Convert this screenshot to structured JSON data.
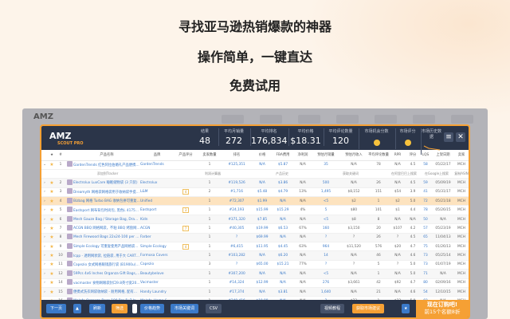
{
  "headlines": [
    "寻找亚马逊热销爆款的神器",
    "操作简单，一键直达",
    "免费试用"
  ],
  "background_app": {
    "logo": "AMZ"
  },
  "app": {
    "logo": "AMZ",
    "logo_sub": "SCOUT PRO",
    "stats": [
      {
        "label": "结果",
        "value": "48"
      },
      {
        "label": "平均月销量",
        "value": "272"
      },
      {
        "label": "平均排名",
        "value": "176,834"
      },
      {
        "label": "平均价格",
        "value": "$18.31"
      },
      {
        "label": "平均评论数量",
        "value": "120"
      }
    ],
    "scores": [
      {
        "label": "市场机会分数"
      },
      {
        "label": "市场评分"
      },
      {
        "label": "市场历史数据"
      }
    ],
    "menu_icon": "hamburger-icon",
    "close_icon": "close-icon"
  },
  "columns": [
    "",
    "★",
    "#",
    "",
    "产品名称",
    "品牌",
    "产品评分",
    "卖家数量",
    "排名",
    "价格",
    "FBA费用",
    "净利润",
    "预估月销量",
    "预估月收入",
    "平均评论数量",
    "RPR",
    "评分",
    "LQS",
    "上架日期",
    "卖家"
  ],
  "actions": [
    "添加到Tracker",
    "利润计算器",
    "产品历史",
    "获取关键词",
    "在阿里巴巴上搜索",
    "在Google上搜索",
    "复制ASIN"
  ],
  "rows": [
    {
      "n": "1",
      "name": "GardenTrends 红色阿拉伯婚礼产品便携式烤肉架 - 45.72 厘米...",
      "brand": "GardenTrends",
      "score": "",
      "sellers": "1",
      "rank": "#125,351",
      "price": "N/A",
      "fba": "$5.87",
      "net": "N/A",
      "sales": "35",
      "rev": "N/A",
      "reviews": "78",
      "rpr": "N/A",
      "rating": "4.5",
      "lqs": "58",
      "date": "05/22/17",
      "seller": "MCH"
    },
    {
      "n": "2",
      "name": "Electrolux LuxCare 睡眠储物袋 (3 只装)",
      "brand": "Electrolux",
      "score": "",
      "sellers": "1",
      "rank": "#119,526",
      "price": "N/A",
      "fba": "$3.86",
      "net": "N/A",
      "sales": "500",
      "rev": "N/A",
      "reviews": "26",
      "rpr": "N/A",
      "rating": "4.5",
      "lqs": "59",
      "date": "05/09/19",
      "seller": "MCH"
    },
    {
      "n": "3",
      "name": "Dreamyth 网格袋网格袋用于收纳袋手提袋旅游袋",
      "brand": "L&M",
      "score": "4",
      "sellers": "2",
      "rank": "#1,716",
      "price": "$5.48",
      "fba": "$4.79",
      "net": "13%",
      "sales": "1,495",
      "rev": "$8,152",
      "reviews": "151",
      "rpr": "$54",
      "rating": "3.9",
      "lqs": "41",
      "date": "05/31/17",
      "seller": "MCH"
    },
    {
      "n": "4",
      "name": "Bizbag 网格 Turbo BAG 收纳包拼可重复使用大容量手提包",
      "brand": "Unified",
      "score": "",
      "sellers": "1",
      "rank": "#72,307",
      "price": "$1.99",
      "fba": "N/A",
      "net": "N/A",
      "sales": "<5",
      "rev": "$2",
      "reviews": "1",
      "rpr": "$2",
      "rating": "5.0",
      "lqs": "72",
      "date": "05/21/18",
      "seller": "MCH"
    },
    {
      "n": "5",
      "name": "Eastsport 网布背包时尚包, 黑色L 417570-BLK",
      "brand": "Eastsport",
      "score": "3",
      "sellers": "1",
      "rank": "#24,193",
      "price": "$15.99",
      "fba": "$15.29",
      "net": "4%",
      "sales": "5",
      "rev": "$80",
      "reviews": "101",
      "rpr": "$1",
      "rating": "4.4",
      "lqs": "78",
      "date": "05/26/15",
      "seller": "MCH"
    },
    {
      "n": "6",
      "name": "Mesh Gauze Bag / Storage Bag, Drawstring Organza Gift Ba...",
      "brand": "Kidn",
      "score": "",
      "sellers": "1",
      "rank": "#371,320",
      "price": "$7.85",
      "fba": "N/A",
      "net": "N/A",
      "sales": "<5",
      "rev": "$8",
      "reviews": "8",
      "rpr": "N/A",
      "rating": "N/A",
      "lqs": "50",
      "date": "N/A",
      "seller": "MCH"
    },
    {
      "n": "7",
      "name": "ACGN BBQ 网格网袋，不粘 BBQ 烤盘网格烧烤可重复使用...",
      "brand": "ACGN",
      "score": "7",
      "sellers": "1",
      "rank": "#40,305",
      "price": "$19.99",
      "fba": "$6.53",
      "net": "67%",
      "sales": "160",
      "rev": "$3,150",
      "reviews": "20",
      "rpr": "$107",
      "rating": "4.2",
      "lqs": "57",
      "date": "05/23/19",
      "seller": "MCH"
    },
    {
      "n": "8",
      "name": "Mesh Firewood Bags 22x24-100 per Pack",
      "brand": "Farber",
      "score": "",
      "sellers": "1",
      "rank": "?",
      "price": "$69.99",
      "fba": "N/A",
      "net": "N/A",
      "sales": "?",
      "rev": "?",
      "reviews": "26",
      "rpr": "?",
      "rating": "4.5",
      "lqs": "65",
      "date": "11/04/13",
      "seller": "MCH"
    },
    {
      "n": "9",
      "name": "Simple Ecology 可重复使用产品网格袋套装, 细绳, 可水洗...",
      "brand": "Simple Ecology",
      "score": "4",
      "sellers": "1",
      "rank": "#6,415",
      "price": "$11.95",
      "fba": "$4.45",
      "net": "63%",
      "sales": "964",
      "rev": "$11,520",
      "reviews": "576",
      "rpr": "$20",
      "rating": "4.7",
      "lqs": "75",
      "date": "01/26/13",
      "seller": "MCH"
    },
    {
      "n": "10",
      "name": "Icpp - 透明网状袋, 拉链袋, 用于大 CART 拖鞋玩具工具包",
      "brand": "Formosa Covers",
      "score": "",
      "sellers": "1",
      "rank": "#103,282",
      "price": "N/A",
      "fba": "$6.20",
      "net": "N/A",
      "sales": "14",
      "rev": "N/A",
      "reviews": "46",
      "rpr": "N/A",
      "rating": "4.6",
      "lqs": "73",
      "date": "05/25/14",
      "seller": "MCH"
    },
    {
      "n": "11",
      "name": "Capezio 女式网格眼镜旅行袋 (B1900u), 均码, 黑色",
      "brand": "Capezio",
      "score": "",
      "sellers": "3",
      "rank": "?",
      "price": "$65.00",
      "fba": "$15.21",
      "net": "77%",
      "sales": "?",
      "rev": "?",
      "reviews": "5",
      "rpr": "?",
      "rating": "5.0",
      "lqs": "73",
      "date": "01/07/19",
      "seller": "MCH"
    },
    {
      "n": "12",
      "name": "59Pcs 4x6 Inches Organza Gift Bags,Beautybelove Drawstrin...",
      "brand": "Beautybelove",
      "score": "",
      "sellers": "1",
      "rank": "#307,200",
      "price": "N/A",
      "fba": "N/A",
      "net": "N/A",
      "sales": "<5",
      "rev": "N/A",
      "reviews": "1",
      "rpr": "N/A",
      "rating": "5.0",
      "lqs": "71",
      "date": "N/A",
      "seller": "MCH"
    },
    {
      "n": "14",
      "name": "vacmaster 食物网眼袋封口9.8英寸宽20.4 cm 卷筒 bags -...",
      "brand": "Vacmaster",
      "score": "",
      "sellers": "1",
      "rank": "#14,324",
      "price": "$12.99",
      "fba": "N/A",
      "net": "N/A",
      "sales": "276",
      "rev": "$3,661",
      "reviews": "42",
      "rpr": "$92",
      "rating": "4.7",
      "lqs": "80",
      "date": "02/09/16",
      "seller": "MCH"
    },
    {
      "n": "15",
      "name": "便携式洗衣网袋收纳袋 - 耐用网格, 配有滑动拉链和把手...",
      "brand": "Handy Laundry",
      "score": "",
      "sellers": "1",
      "rank": "#17,374",
      "price": "N/A",
      "fba": "$3.81",
      "net": "N/A",
      "sales": "1,640",
      "rev": "N/A",
      "reviews": "21",
      "rpr": "N/A",
      "rating": "4.6",
      "lqs": "54",
      "date": "12/10/15",
      "seller": "MCH"
    },
    {
      "n": "16",
      "name": "Wolofo Organza Bags 100 Pcs 5x7 Inches White Sheer Mes...",
      "brand": "Wolofo_Home & Gar...",
      "score": "",
      "sellers": "1",
      "rank": "#240,416",
      "price": "$10.99",
      "fba": "N/A",
      "net": "N/A",
      "sales": "2",
      "rev": "$22",
      "reviews": "1",
      "rpr": "$22",
      "rating": "5.0",
      "lqs": "69",
      "date": "N/A",
      "seller": "MCH"
    }
  ],
  "footer": {
    "next": "下一页",
    "up": "▲",
    "refresh": "刷新",
    "filter": "筛选",
    "trend": "价格趋势",
    "keywords": "市场关键词",
    "csv": "CSV",
    "video": "视频教程",
    "advice": "获取市场建议",
    "star": "★",
    "order": "现在订购吧!",
    "order_sub": "前15个名额8折"
  },
  "colors": {
    "accent": "#f5a034",
    "header": "#2b3549",
    "link": "#3b7ac9",
    "highlight": "#fde3bf"
  }
}
